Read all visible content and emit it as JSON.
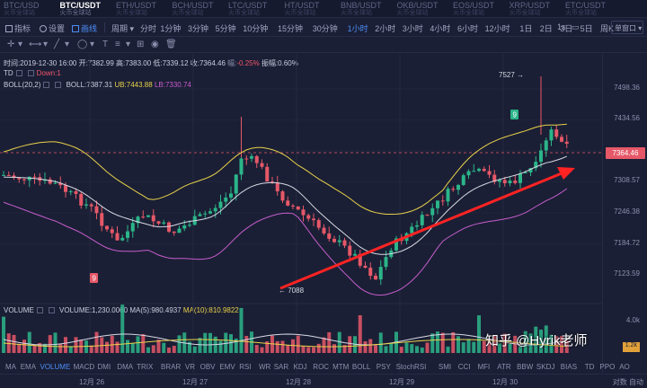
{
  "tickers": [
    {
      "symbol": "BTC/USD",
      "sub": "火币全球站",
      "active": false
    },
    {
      "symbol": "BTC/USDT",
      "sub": "火币全球站",
      "active": true
    },
    {
      "symbol": "ETH/USDT",
      "sub": "火币全球站",
      "active": false
    },
    {
      "symbol": "BCH/USDT",
      "sub": "火币全球站",
      "active": false
    },
    {
      "symbol": "LTC/USDT",
      "sub": "火币全球站",
      "active": false
    },
    {
      "symbol": "HT/USDT",
      "sub": "火币全球站",
      "active": false
    },
    {
      "symbol": "BNB/USDT",
      "sub": "火币全球站",
      "active": false
    },
    {
      "symbol": "OKB/USDT",
      "sub": "火币全球站",
      "active": false
    },
    {
      "symbol": "EOS/USDT",
      "sub": "火币全球站",
      "active": false
    },
    {
      "symbol": "XRP/USDT",
      "sub": "火币全球站",
      "active": false
    },
    {
      "symbol": "ETC/USDT",
      "sub": "火币全球站",
      "active": false
    }
  ],
  "toolbar": {
    "indicators_label": "指标",
    "settings_label": "设置",
    "draw_label": "画线",
    "period_label": "周期",
    "intervals": [
      "分时",
      "1分钟",
      "3分钟",
      "5分钟",
      "10分钟",
      "15分钟",
      "30分钟",
      "1小时",
      "2小时",
      "3小时",
      "4小时",
      "6小时",
      "12小时",
      "1日",
      "2日",
      "3日",
      "5日",
      "周K"
    ],
    "active_interval": "1小时",
    "seconds_label": "1s",
    "pane_label": "单窗口"
  },
  "ohlc_line": {
    "time": "时间:2019-12-30 16:00",
    "open": "开:7382.99",
    "high": "高:7383.00",
    "low": "低:7339.12",
    "close": "收:7364.46",
    "change": "-0.25%",
    "amplitude": "振幅:0.60%"
  },
  "td_line": {
    "label": "TD",
    "down": "Down:1"
  },
  "boll_line": {
    "label": "BOLL(20,2)",
    "boll": "BOLL:7387.31",
    "ub": "UB:7443.88",
    "lb": "LB:7330.74"
  },
  "volume_line": {
    "label": "VOLUME",
    "volume": "VOLUME:1,230.0060",
    "ma5": "MA(5):980.4937",
    "ma10": "MA(10):810.9822"
  },
  "price_axis": [
    "7498.36",
    "7434.56",
    "7370.76",
    "7308.57",
    "7246.38",
    "7184.72",
    "7123.59"
  ],
  "current_price": "7364.46",
  "high_marker": "7527",
  "low_marker": "7088",
  "td_badges": [
    "9",
    "9"
  ],
  "volume_axis": {
    "top": "4.0k",
    "tag": "1.2k"
  },
  "bottom_indicators": [
    "MA",
    "EMA",
    "VOLUME",
    "MACD",
    "DMI",
    "DMA",
    "TRIX",
    "BRAR",
    "VR",
    "OBV",
    "EMV",
    "RSI",
    "WR",
    "SAR",
    "KDJ",
    "ROC",
    "MTM",
    "BOLL",
    "PSY",
    "StochRSI",
    "SMI",
    "CCI",
    "MFI",
    "ATR",
    "BBW",
    "SKDJ",
    "BIAS",
    "TD",
    "PPO",
    "AO"
  ],
  "active_indicator": "VOLUME",
  "dates": [
    "12月 26",
    "12月 27",
    "12月 28",
    "12月 29",
    "12月 30"
  ],
  "dates_right": "对数  自动",
  "watermark": "知乎 @Hyrik老师",
  "colors": {
    "up": "#2bb589",
    "down": "#e65868",
    "bg": "#1b1f35",
    "accent": "#4c8df6",
    "ub": "#e8d24a",
    "lb": "#c65dcc",
    "mid": "#d7d9e3",
    "arrow": "#ff2323"
  }
}
